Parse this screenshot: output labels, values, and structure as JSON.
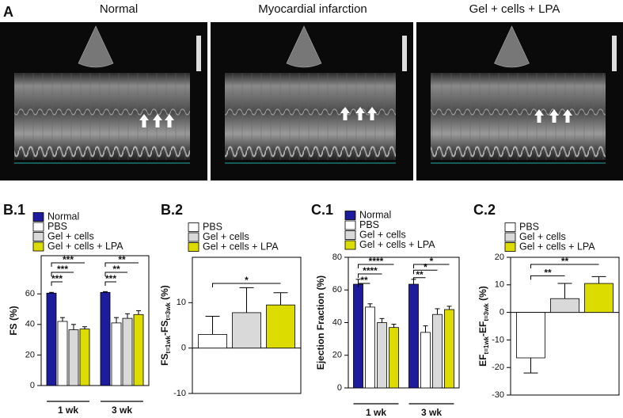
{
  "panel_a": {
    "label": "A",
    "images": [
      {
        "title": "Normal"
      },
      {
        "title": "Myocardial infarction"
      },
      {
        "title": "Gel + cells + LPA"
      }
    ]
  },
  "chart_data": [
    {
      "type": "bar",
      "panel": "B.1",
      "ylabel": [
        "FS (%)"
      ],
      "categories": [
        "1 wk",
        "3 wk"
      ],
      "series": [
        {
          "name": "Normal",
          "color": "#1c1c9c",
          "values": [
            60.5,
            61
          ],
          "errors": [
            0.5,
            0.5
          ]
        },
        {
          "name": "PBS",
          "color": "#ffffff",
          "values": [
            42,
            41
          ],
          "errors": [
            2.5,
            3.5
          ]
        },
        {
          "name": "Gel + cells",
          "color": "#d9d9d9",
          "values": [
            36.5,
            44
          ],
          "errors": [
            3.5,
            3
          ]
        },
        {
          "name": "Gel + cells + LPA",
          "color": "#dcdc00",
          "values": [
            37,
            46.5
          ],
          "errors": [
            1.5,
            2.5
          ]
        }
      ],
      "ylim": [
        0,
        85
      ],
      "yticks": [
        0,
        20,
        40,
        60
      ],
      "annotations": [
        "***",
        "***",
        "***",
        "**",
        "**",
        "***"
      ]
    },
    {
      "type": "bar",
      "panel": "B.2",
      "ylabel": [
        "FS",
        "t=1wk",
        "-FS",
        "t=3wk",
        " (%)"
      ],
      "categories": [
        null
      ],
      "series": [
        {
          "name": "PBS",
          "color": "#ffffff",
          "values": [
            3
          ],
          "errors": [
            4
          ]
        },
        {
          "name": "Gel + cells",
          "color": "#d9d9d9",
          "values": [
            7.8
          ],
          "errors": [
            5.5
          ]
        },
        {
          "name": "Gel + cells + LPA",
          "color": "#dcdc00",
          "values": [
            9.5
          ],
          "errors": [
            2.7
          ]
        }
      ],
      "ylim": [
        -10,
        20
      ],
      "yticks": [
        -10,
        0,
        10
      ],
      "annotations": [
        "*"
      ]
    },
    {
      "type": "bar",
      "panel": "C.1",
      "ylabel": [
        "Ejection Fraction (%)"
      ],
      "categories": [
        "1 wk",
        "3 wk"
      ],
      "series": [
        {
          "name": "Normal",
          "color": "#1c1c9c",
          "values": [
            63.5,
            63.5
          ],
          "errors": [
            3,
            3
          ]
        },
        {
          "name": "PBS",
          "color": "#ffffff",
          "values": [
            49.5,
            34
          ],
          "errors": [
            2,
            4
          ]
        },
        {
          "name": "Gel + cells",
          "color": "#d9d9d9",
          "values": [
            40,
            45
          ],
          "errors": [
            2.5,
            3.5
          ]
        },
        {
          "name": "Gel + cells + LPA",
          "color": "#dcdc00",
          "values": [
            37,
            48
          ],
          "errors": [
            2,
            2
          ]
        }
      ],
      "ylim": [
        0,
        80
      ],
      "yticks": [
        0,
        20,
        40,
        60,
        80
      ],
      "annotations": [
        "****",
        "****",
        "**",
        "*",
        "*",
        "**"
      ]
    },
    {
      "type": "bar",
      "panel": "C.2",
      "ylabel": [
        "EF",
        "t=1wk",
        "-EF",
        "t=3wk",
        " (%)"
      ],
      "categories": [
        null
      ],
      "series": [
        {
          "name": "PBS",
          "color": "#ffffff",
          "values": [
            -16.5
          ],
          "errors": [
            5.5
          ]
        },
        {
          "name": "Gel + cells",
          "color": "#d9d9d9",
          "values": [
            5
          ],
          "errors": [
            5.5
          ]
        },
        {
          "name": "Gel + cells + LPA",
          "color": "#dcdc00",
          "values": [
            10.5
          ],
          "errors": [
            2.5
          ]
        }
      ],
      "ylim": [
        -30,
        20
      ],
      "yticks": [
        -30,
        -20,
        -10,
        0,
        10,
        20
      ],
      "annotations": [
        "**",
        "**"
      ]
    }
  ]
}
